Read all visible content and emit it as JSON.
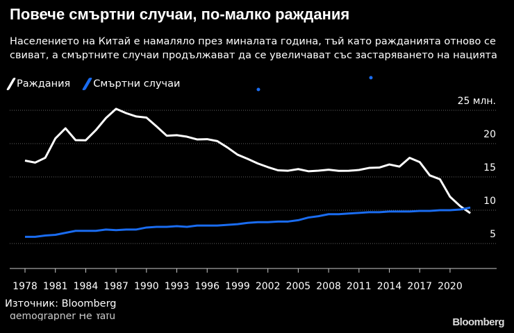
{
  "title": "Повече смъртни случаи, по-малко раждания",
  "subtitle": "Населението на Китай е намаляло през миналата година, тъй като ражданията отново се свиват, а смъртните случаи продължават да се увеличават със застаряването на нацията",
  "source": "Източник: Bloomberg",
  "clipped_note": "demographer He Yafu",
  "brand": "Bloomberg",
  "chart_data": {
    "type": "line",
    "title": "Повече смъртни случаи, по-малко раждания",
    "ylabel": "",
    "y_unit_label": "25 млн.",
    "ylim": [
      0,
      25
    ],
    "yticks": [
      "25 млн.",
      "20",
      "15",
      "10",
      "5"
    ],
    "ytick_values": [
      25,
      20,
      15,
      10,
      5
    ],
    "xticks": [
      "1978",
      "1981",
      "1984",
      "1987",
      "1990",
      "1993",
      "1996",
      "1999",
      "2002",
      "2005",
      "2008",
      "2011",
      "2014",
      "2017",
      "2020"
    ],
    "grid": true,
    "legend_position": "top-left",
    "x": [
      1978,
      1979,
      1980,
      1981,
      1982,
      1983,
      1984,
      1985,
      1986,
      1987,
      1988,
      1989,
      1990,
      1991,
      1992,
      1993,
      1994,
      1995,
      1996,
      1997,
      1998,
      1999,
      2000,
      2001,
      2002,
      2003,
      2004,
      2005,
      2006,
      2007,
      2008,
      2009,
      2010,
      2011,
      2012,
      2013,
      2014,
      2015,
      2016,
      2017,
      2018,
      2019,
      2020,
      2021,
      2022
    ],
    "series": [
      {
        "name": "Раждания",
        "color": "#ffffff",
        "values": [
          17.45,
          17.15,
          17.87,
          20.78,
          22.3,
          20.52,
          20.5,
          22.02,
          23.84,
          25.22,
          24.57,
          24.07,
          23.91,
          22.58,
          21.19,
          21.26,
          21.04,
          20.63,
          20.67,
          20.38,
          19.42,
          18.34,
          17.71,
          17.02,
          16.47,
          15.99,
          15.93,
          16.17,
          15.85,
          15.94,
          16.08,
          15.91,
          15.92,
          16.04,
          16.35,
          16.4,
          16.87,
          16.55,
          17.86,
          17.23,
          15.23,
          14.65,
          12.02,
          10.62,
          9.56
        ]
      },
      {
        "name": "Смъртни случаи",
        "color": "#1a6cf0",
        "values": [
          6.0,
          6.0,
          6.2,
          6.3,
          6.6,
          6.9,
          6.9,
          6.9,
          7.1,
          7.0,
          7.1,
          7.1,
          7.4,
          7.5,
          7.5,
          7.6,
          7.5,
          7.7,
          7.7,
          7.7,
          7.8,
          7.9,
          8.1,
          8.2,
          8.2,
          8.3,
          8.3,
          8.5,
          8.9,
          9.1,
          9.4,
          9.4,
          9.5,
          9.6,
          9.7,
          9.7,
          9.8,
          9.8,
          9.8,
          9.9,
          9.9,
          10.0,
          10.0,
          10.1,
          10.4
        ]
      }
    ]
  }
}
